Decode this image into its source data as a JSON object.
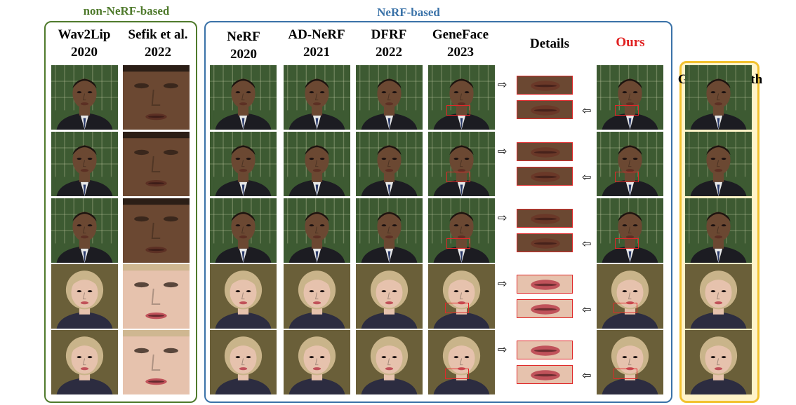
{
  "groups": {
    "non_nerf": {
      "label": "non-NeRF-based",
      "color": "#4f7a2c"
    },
    "nerf": {
      "label": "NeRF-based",
      "color": "#3a72a8"
    },
    "gt": {
      "color": "#f2c230"
    }
  },
  "columns": [
    {
      "line1": "Wav2Lip",
      "line2": "2020"
    },
    {
      "line1": "Sefik et al.",
      "line2": "2022"
    },
    {
      "line1": "NeRF",
      "line2": "2020"
    },
    {
      "line1": "AD-NeRF",
      "line2": "2021"
    },
    {
      "line1": "DFRF",
      "line2": "2022"
    },
    {
      "line1": "GeneFace",
      "line2": "2023"
    },
    {
      "line1": "Details",
      "line2": ""
    },
    {
      "line1": "Ours",
      "line2": ""
    },
    {
      "line1": "Ground  Truth",
      "line2": ""
    }
  ],
  "rows": [
    {
      "subject": "male-portrait",
      "bg": "#3d5a32",
      "skin": "#6b4832",
      "cloth": "#1c1c22"
    },
    {
      "subject": "male-portrait",
      "bg": "#3d5a32",
      "skin": "#6b4832",
      "cloth": "#1c1c22"
    },
    {
      "subject": "male-portrait",
      "bg": "#3d5a32",
      "skin": "#6b4832",
      "cloth": "#1c1c22"
    },
    {
      "subject": "female-portrait",
      "bg": "#5a5030",
      "skin": "#e6c2ad",
      "cloth": "#2c2c40"
    },
    {
      "subject": "female-portrait",
      "bg": "#5a5030",
      "skin": "#e6c2ad",
      "cloth": "#2c2c40"
    }
  ],
  "arrows": {
    "right": "⇨",
    "left": "⇦"
  }
}
